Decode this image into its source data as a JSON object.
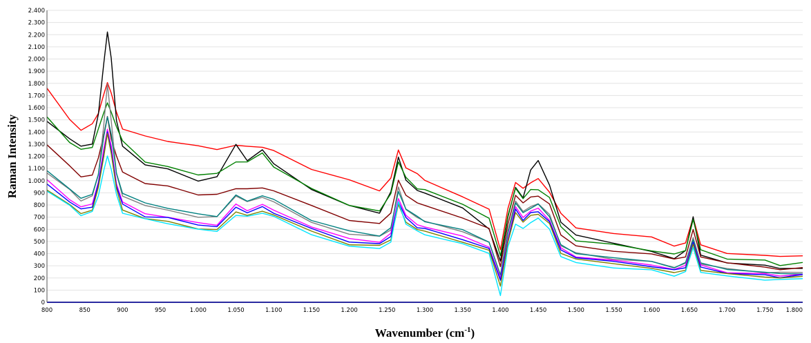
{
  "chart_data": {
    "type": "line",
    "xlabel_main": "Wavenumber (cm",
    "xlabel_sup": "-1",
    "xlabel_end": ")",
    "ylabel": "Raman Intensity",
    "xlim": [
      800,
      1800
    ],
    "ylim": [
      0,
      2400
    ],
    "x_ticks": [
      800,
      850,
      900,
      950,
      1000,
      1050,
      1100,
      1150,
      1200,
      1250,
      1300,
      1350,
      1400,
      1450,
      1500,
      1550,
      1600,
      1650,
      1700,
      1750,
      1800
    ],
    "x_tick_labels": [
      "800",
      "850",
      "900",
      "950",
      "1.000",
      "1.050",
      "1.100",
      "1.150",
      "1.200",
      "1.250",
      "1.300",
      "1.350",
      "1.400",
      "1.450",
      "1.500",
      "1.550",
      "1.600",
      "1.650",
      "1.700",
      "1.750",
      "1.800"
    ],
    "y_ticks": [
      0,
      100,
      200,
      300,
      400,
      500,
      600,
      700,
      800,
      900,
      1000,
      1100,
      1200,
      1300,
      1400,
      1500,
      1600,
      1700,
      1800,
      1900,
      2000,
      2100,
      2200,
      2300,
      2400
    ],
    "y_tick_labels": [
      "0",
      "100",
      "200",
      "300",
      "400",
      "500",
      "600",
      "700",
      "800",
      "900",
      "1.000",
      "1.100",
      "1.200",
      "1.300",
      "1.400",
      "1.500",
      "1.600",
      "1.700",
      "1.800",
      "1.900",
      "2.000",
      "2.100",
      "2.200",
      "2.300",
      "2.400"
    ],
    "grid": true,
    "x": [
      800,
      830,
      845,
      860,
      868,
      875,
      880,
      885,
      892,
      900,
      930,
      960,
      1000,
      1025,
      1050,
      1065,
      1085,
      1100,
      1150,
      1200,
      1240,
      1255,
      1265,
      1275,
      1290,
      1300,
      1350,
      1385,
      1400,
      1410,
      1420,
      1430,
      1440,
      1450,
      1465,
      1480,
      1500,
      1550,
      1600,
      1630,
      1645,
      1655,
      1665,
      1700,
      1750,
      1770,
      1800
    ],
    "series": [
      {
        "color": "#ff0000",
        "values": [
          1760,
          1500,
          1420,
          1460,
          1560,
          1700,
          1810,
          1720,
          1560,
          1430,
          1360,
          1330,
          1280,
          1260,
          1290,
          1280,
          1280,
          1240,
          1100,
          1000,
          920,
          1020,
          1250,
          1110,
          1050,
          1010,
          860,
          770,
          430,
          770,
          990,
          930,
          990,
          1010,
          910,
          730,
          610,
          570,
          530,
          470,
          480,
          700,
          470,
          400,
          390,
          370,
          390
        ]
      },
      {
        "color": "#000000",
        "values": [
          1480,
          1350,
          1280,
          1300,
          1550,
          1950,
          2230,
          2000,
          1500,
          1280,
          1130,
          1100,
          990,
          1040,
          1290,
          1170,
          1250,
          1140,
          930,
          790,
          740,
          900,
          1200,
          1000,
          920,
          900,
          770,
          610,
          330,
          710,
          940,
          860,
          1090,
          1160,
          970,
          650,
          560,
          480,
          420,
          360,
          420,
          710,
          380,
          330,
          300,
          280,
          280
        ]
      },
      {
        "color": "#008000",
        "values": [
          1520,
          1320,
          1250,
          1280,
          1420,
          1560,
          1640,
          1560,
          1450,
          1320,
          1160,
          1110,
          1050,
          1060,
          1150,
          1160,
          1220,
          1120,
          930,
          800,
          750,
          890,
          1160,
          1020,
          940,
          920,
          810,
          690,
          380,
          720,
          930,
          860,
          920,
          930,
          860,
          620,
          510,
          470,
          430,
          390,
          430,
          680,
          430,
          360,
          340,
          310,
          320
        ]
      },
      {
        "color": "#800000",
        "values": [
          1300,
          1120,
          1030,
          1050,
          1180,
          1380,
          1520,
          1350,
          1200,
          1070,
          980,
          950,
          890,
          880,
          940,
          930,
          940,
          920,
          790,
          680,
          640,
          740,
          1000,
          880,
          820,
          790,
          700,
          600,
          300,
          640,
          880,
          820,
          860,
          880,
          800,
          560,
          460,
          420,
          400,
          350,
          380,
          590,
          380,
          320,
          290,
          270,
          280
        ]
      },
      {
        "color": "#808080",
        "values": [
          1070,
          920,
          840,
          870,
          1050,
          1450,
          1790,
          1500,
          1050,
          880,
          790,
          760,
          700,
          700,
          880,
          820,
          870,
          820,
          660,
          560,
          540,
          600,
          940,
          770,
          690,
          670,
          580,
          490,
          230,
          580,
          840,
          740,
          790,
          810,
          720,
          470,
          400,
          360,
          330,
          290,
          320,
          530,
          320,
          270,
          250,
          240,
          250
        ]
      },
      {
        "color": "#008080",
        "values": [
          1080,
          930,
          860,
          880,
          1060,
          1350,
          1530,
          1380,
          1060,
          900,
          810,
          780,
          720,
          710,
          880,
          830,
          880,
          840,
          680,
          580,
          550,
          610,
          910,
          770,
          700,
          670,
          590,
          500,
          220,
          570,
          820,
          730,
          780,
          800,
          710,
          470,
          400,
          370,
          330,
          290,
          320,
          520,
          320,
          270,
          250,
          230,
          240
        ]
      },
      {
        "color": "#ff00ff",
        "values": [
          1000,
          850,
          780,
          810,
          990,
          1250,
          1430,
          1280,
          980,
          820,
          730,
          700,
          650,
          640,
          800,
          760,
          800,
          760,
          620,
          520,
          500,
          560,
          860,
          710,
          640,
          620,
          540,
          460,
          190,
          530,
          780,
          700,
          750,
          770,
          680,
          440,
          380,
          340,
          310,
          270,
          300,
          500,
          300,
          250,
          230,
          220,
          230
        ]
      },
      {
        "color": "#0000ff",
        "values": [
          970,
          830,
          760,
          790,
          970,
          1220,
          1400,
          1250,
          960,
          800,
          710,
          690,
          640,
          620,
          780,
          740,
          780,
          740,
          600,
          500,
          480,
          540,
          830,
          690,
          620,
          600,
          520,
          440,
          180,
          510,
          760,
          680,
          730,
          750,
          660,
          430,
          370,
          330,
          300,
          260,
          290,
          490,
          290,
          240,
          220,
          210,
          220
        ]
      },
      {
        "color": "#808000",
        "values": [
          930,
          800,
          730,
          760,
          940,
          1200,
          1380,
          1230,
          930,
          760,
          690,
          660,
          610,
          590,
          750,
          710,
          750,
          720,
          580,
          480,
          460,
          520,
          800,
          660,
          600,
          580,
          500,
          420,
          140,
          490,
          740,
          660,
          710,
          730,
          640,
          410,
          350,
          320,
          280,
          240,
          270,
          470,
          270,
          230,
          210,
          200,
          210
        ]
      },
      {
        "color": "#00e5ff",
        "values": [
          920,
          790,
          720,
          740,
          880,
          1080,
          1200,
          1100,
          880,
          740,
          680,
          650,
          600,
          580,
          720,
          700,
          740,
          700,
          560,
          460,
          440,
          500,
          820,
          650,
          580,
          560,
          480,
          400,
          60,
          450,
          650,
          600,
          660,
          690,
          600,
          380,
          320,
          290,
          260,
          220,
          250,
          450,
          250,
          210,
          190,
          180,
          200
        ]
      }
    ]
  }
}
